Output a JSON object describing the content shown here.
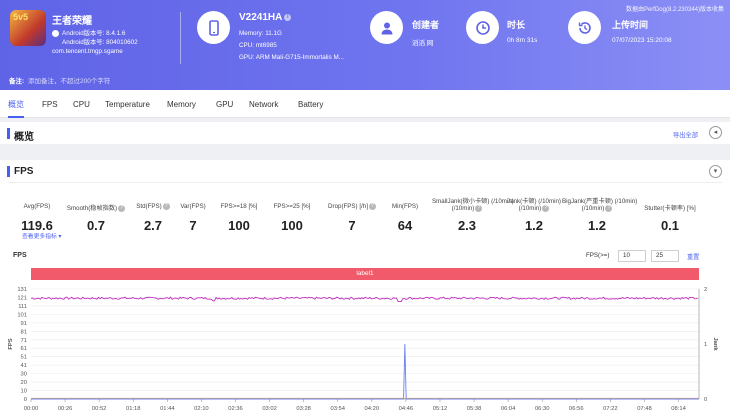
{
  "app": {
    "icon_text": "5v5",
    "name": "王者荣耀",
    "android_ver": "Android版本号: 8.4.1.6",
    "android_code": "Android版本号: 804010602",
    "package": "com.tencent.tmgp.sgame"
  },
  "device": {
    "icon": "phone-icon",
    "model": "V2241HA",
    "memory": "Memory: 11.1G",
    "cpu": "CPU: mt6985",
    "gpu": "GPU: ARM Mali-G715-Immortalis M..."
  },
  "creator": {
    "icon": "user-icon",
    "label": "创建者",
    "value": "滔滔 网"
  },
  "duration": {
    "icon": "clock-icon",
    "label": "时长",
    "value": "0h 8m 31s"
  },
  "upload": {
    "icon": "history-icon",
    "label": "上传时间",
    "value": "07/07/2023 15:20:08",
    "source": "数据由PerfDog(8.2.230344)版本收集"
  },
  "note": {
    "label": "备注:",
    "placeholder": "添加备注，不超过200个字符"
  },
  "tabs": [
    "概览",
    "FPS",
    "CPU",
    "Temperature",
    "Memory",
    "GPU",
    "Network",
    "Battery"
  ],
  "active_tab": "概览",
  "overview": {
    "title": "概览",
    "export": "导出全部"
  },
  "fps_section": {
    "title": "FPS",
    "more": "查看更多指标 ▾",
    "metrics": [
      {
        "label": "Avg(FPS)",
        "value": "119.6",
        "help": false
      },
      {
        "label": "Smooth(稳帧指数)",
        "value": "0.7",
        "help": true
      },
      {
        "label": "Std(FPS)",
        "value": "2.7",
        "help": true
      },
      {
        "label": "Var(FPS)",
        "value": "7",
        "help": false
      },
      {
        "label": "FPS>=18 [%]",
        "value": "100",
        "help": false
      },
      {
        "label": "FPS>=25 [%]",
        "value": "100",
        "help": false
      },
      {
        "label": "Drop(FPS) [/h]",
        "value": "7",
        "help": true
      },
      {
        "label": "Min(FPS)",
        "value": "64",
        "help": false
      },
      {
        "label": "SmallJank(微小卡顿)\n(/10min)",
        "value": "2.3",
        "help": true
      },
      {
        "label": "Jank(卡顿)\n(/10min)",
        "value": "1.2",
        "help": true
      },
      {
        "label": "BigJank(严重卡顿)\n(/10min)",
        "value": "1.2",
        "help": true
      },
      {
        "label": "Stutter(卡顿率) [%]",
        "value": "0.1",
        "help": false
      }
    ]
  },
  "chart_controls": {
    "fps_ge_label": "FPS(>=)",
    "fps_ge_1": "10",
    "fps_ge_2": "25",
    "reset": "重置"
  },
  "colors": {
    "accent": "#4a5ff2",
    "fps_line": "#c02ec0",
    "jank_line": "#6b7ff0",
    "label_bar": "#f05a6a",
    "header": "#6569ea"
  },
  "chart_data": {
    "type": "line",
    "title": "FPS",
    "label_bar": "label1",
    "ylabel_left": "FPS",
    "ylabel_right": "Jank",
    "ylim_left": [
      0,
      131
    ],
    "ylim_right": [
      0,
      2
    ],
    "yticks_left": [
      "0",
      "10",
      "20",
      "30",
      "41",
      "51",
      "61",
      "71",
      "81",
      "91",
      "101",
      "111",
      "121",
      "131"
    ],
    "yticks_right": [
      "0",
      "1",
      "2"
    ],
    "xticks": [
      "00:00",
      "00:26",
      "00:52",
      "01:18",
      "01:44",
      "02:10",
      "02:36",
      "03:02",
      "03:28",
      "03:54",
      "04:20",
      "04:46",
      "05:12",
      "05:38",
      "06:04",
      "06:30",
      "06:56",
      "07:22",
      "07:48",
      "08:14"
    ],
    "duration_s": 511,
    "series": [
      {
        "name": "FPS",
        "axis": "left",
        "baseline": 120,
        "noise": 1.3,
        "dips": [
          [
            282,
            116
          ],
          [
            140,
            117
          ]
        ]
      },
      {
        "name": "Jank",
        "axis": "right",
        "baseline": 0,
        "spikes": [
          [
            286,
            1
          ]
        ]
      }
    ]
  }
}
